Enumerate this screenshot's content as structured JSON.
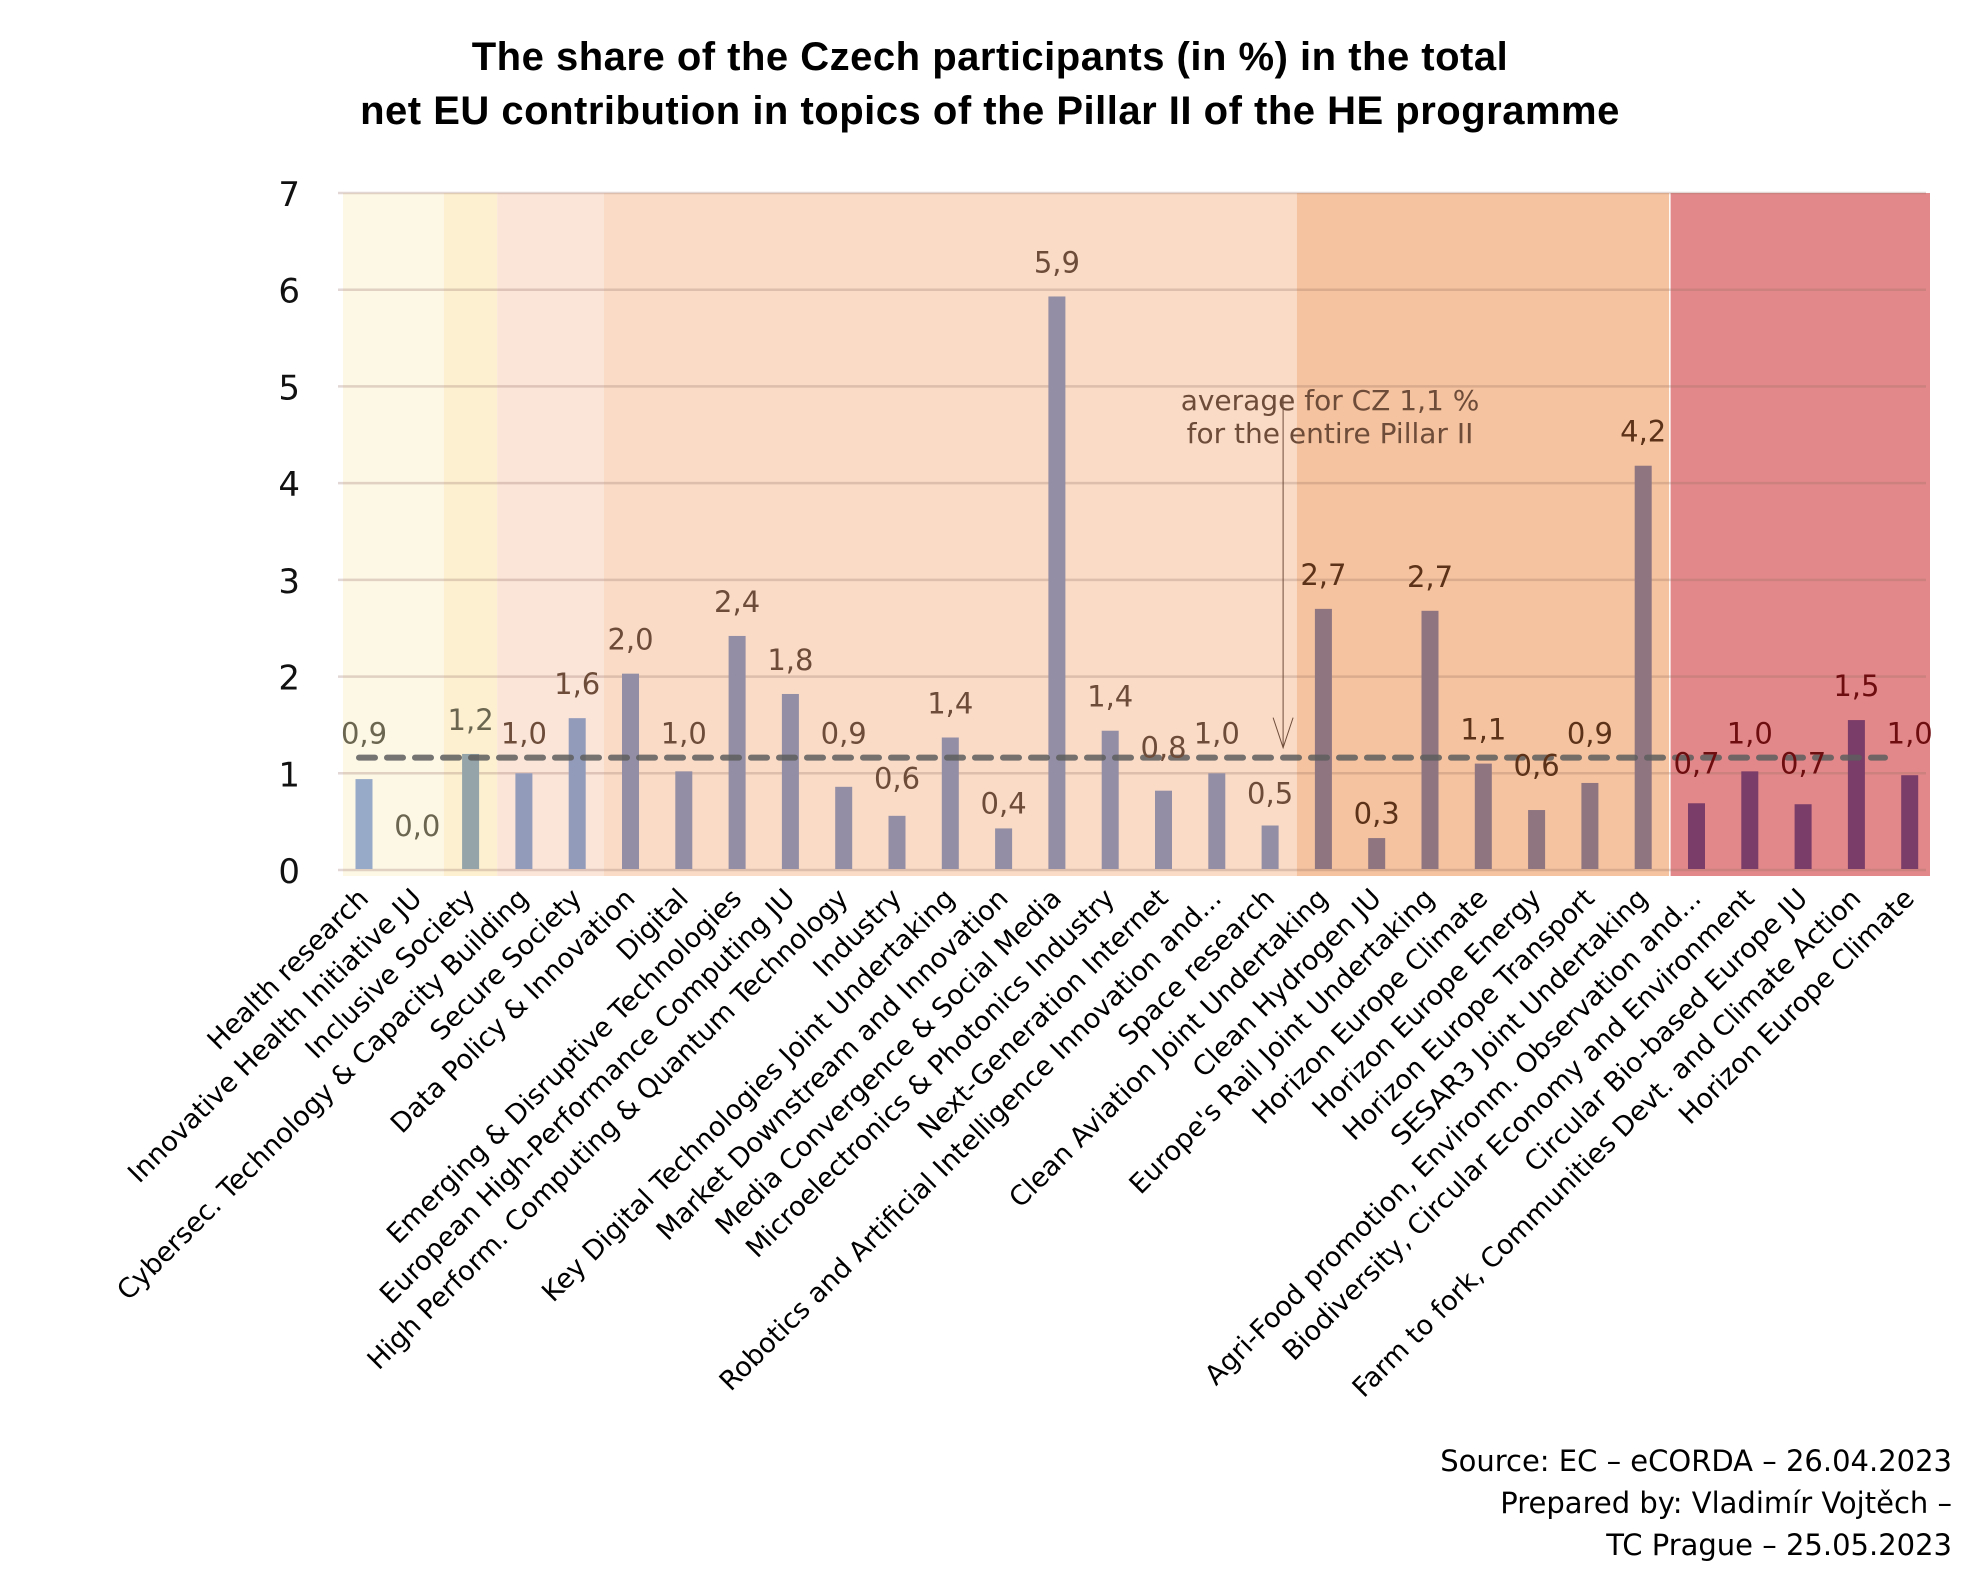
{
  "chart_data": {
    "type": "bar",
    "title": [
      "The share of the Czech participants (in %) in the total",
      "net EU contribution in topics of the Pillar II of the HE programme"
    ],
    "xlabel": "",
    "ylabel": "",
    "ylim": [
      0,
      7
    ],
    "yticks": [
      "0",
      "1",
      "2",
      "3",
      "4",
      "5",
      "6",
      "7"
    ],
    "grid": true,
    "categories": [
      "Health research",
      "Innovative Health Initiative JU",
      "Inclusive Society",
      "Cybersec. Technology & Capacity Building",
      "Secure Society",
      "Data Policy & Innovation",
      "Digital",
      "Emerging & Disruptive Technologies",
      "European High-Performance Computing JU",
      "High Perform. Computing & Quantum Technology",
      "Industry",
      "Key Digital Technologies Joint Undertaking",
      "Market Downstream and Innovation",
      "Media Convergence & Social Media",
      "Microelectronics & Photonics Industry",
      "Next-Generation Internet",
      "Robotics and Artificial Intelligence Innovation and...",
      "Space research",
      "Clean Aviation Joint Undertaking",
      "Clean Hydrogen JU",
      "Europe's Rail Joint Undertaking",
      "Horizon Europe Climate",
      "Horizon Europe Energy",
      "Horizon Europe Transport",
      "SESAR3 Joint Undertaking",
      "Agri-Food promotion, Environm. Observation and...",
      "Biodiversity, Circular Economy and Environment",
      "Circular Bio-based Europe JU",
      "Farm to fork, Communities Devt. and Climate Action",
      "Horizon Europe Climate"
    ],
    "values": [
      0.94,
      0.0,
      1.2,
      1.0,
      1.57,
      2.03,
      1.02,
      2.42,
      1.82,
      0.86,
      0.56,
      1.37,
      0.43,
      5.93,
      1.44,
      0.82,
      1.0,
      0.46,
      2.7,
      0.33,
      2.68,
      1.1,
      0.62,
      0.9,
      4.18,
      0.69,
      1.02,
      0.68,
      1.55,
      0.98
    ],
    "data_labels": [
      "0,9",
      "0,0",
      "1,2",
      "1,0",
      "1,6",
      "2,0",
      "1,0",
      "2,4",
      "1,8",
      "0,9",
      "0,6",
      "1,4",
      "0,4",
      "5,9",
      "1,4",
      "0,8",
      "1,0",
      "0,5",
      "2,7",
      "0,3",
      "2,7",
      "1,1",
      "0,6",
      "0,9",
      "4,2",
      "0,7",
      "1,0",
      "0,7",
      "1,5",
      "1,0"
    ],
    "bar_colors": [
      "#97abc8",
      "#97abc8",
      "#94a4a8",
      "#939bbb",
      "#939bbb",
      "#938ea5",
      "#938ea5",
      "#938ea5",
      "#938ea5",
      "#938ea5",
      "#938ea5",
      "#938ea5",
      "#938ea5",
      "#938ea5",
      "#938ea5",
      "#938ea5",
      "#938ea5",
      "#938ea5",
      "#8e7580",
      "#8e7580",
      "#8e7580",
      "#8e7580",
      "#8e7580",
      "#8e7580",
      "#8e7580",
      "#7a3c68",
      "#7a3c68",
      "#7a3c68",
      "#7a3c68",
      "#7a3c68"
    ],
    "label_colors": [
      "#6b6650",
      "#6b6650",
      "#6b6650",
      "#6e4c3a",
      "#6e4c3a",
      "#6e4c3a",
      "#6e4c3a",
      "#6e4c3a",
      "#6e4c3a",
      "#6e4c3a",
      "#6e4c3a",
      "#6e4c3a",
      "#6e4c3a",
      "#6e4c3a",
      "#6e4c3a",
      "#6e4c3a",
      "#6e4c3a",
      "#6e4c3a",
      "#5c3218",
      "#5c3218",
      "#5c3218",
      "#5c3218",
      "#5c3218",
      "#5c3218",
      "#5c3218",
      "#6e0d10",
      "#6e0d10",
      "#6e0d10",
      "#6e0d10",
      "#6e0d10"
    ],
    "bands": [
      {
        "from": 0,
        "to": 1,
        "color": "#fdf7e6"
      },
      {
        "from": 2,
        "to": 2,
        "color": "#fdf0d0"
      },
      {
        "from": 3,
        "to": 4,
        "color": "#fae5d8"
      },
      {
        "from": 5,
        "to": 17,
        "color": "#f9dbc6"
      },
      {
        "from": 18,
        "to": 24,
        "color": "#f5c39f"
      },
      {
        "from": 25,
        "to": 29,
        "color": "#e2888a"
      }
    ],
    "average": {
      "value": 1.1,
      "label_lines": [
        "average for CZ 1,1 %",
        "for the entire Pillar II"
      ],
      "line_color": "#5e5e5e"
    }
  },
  "footer": {
    "source_lines": [
      "Source: EC – eCORDA – 26.04.2023",
      "Prepared by: Vladimír Vojtěch –",
      "TC Prague – 25.05.2023"
    ]
  }
}
